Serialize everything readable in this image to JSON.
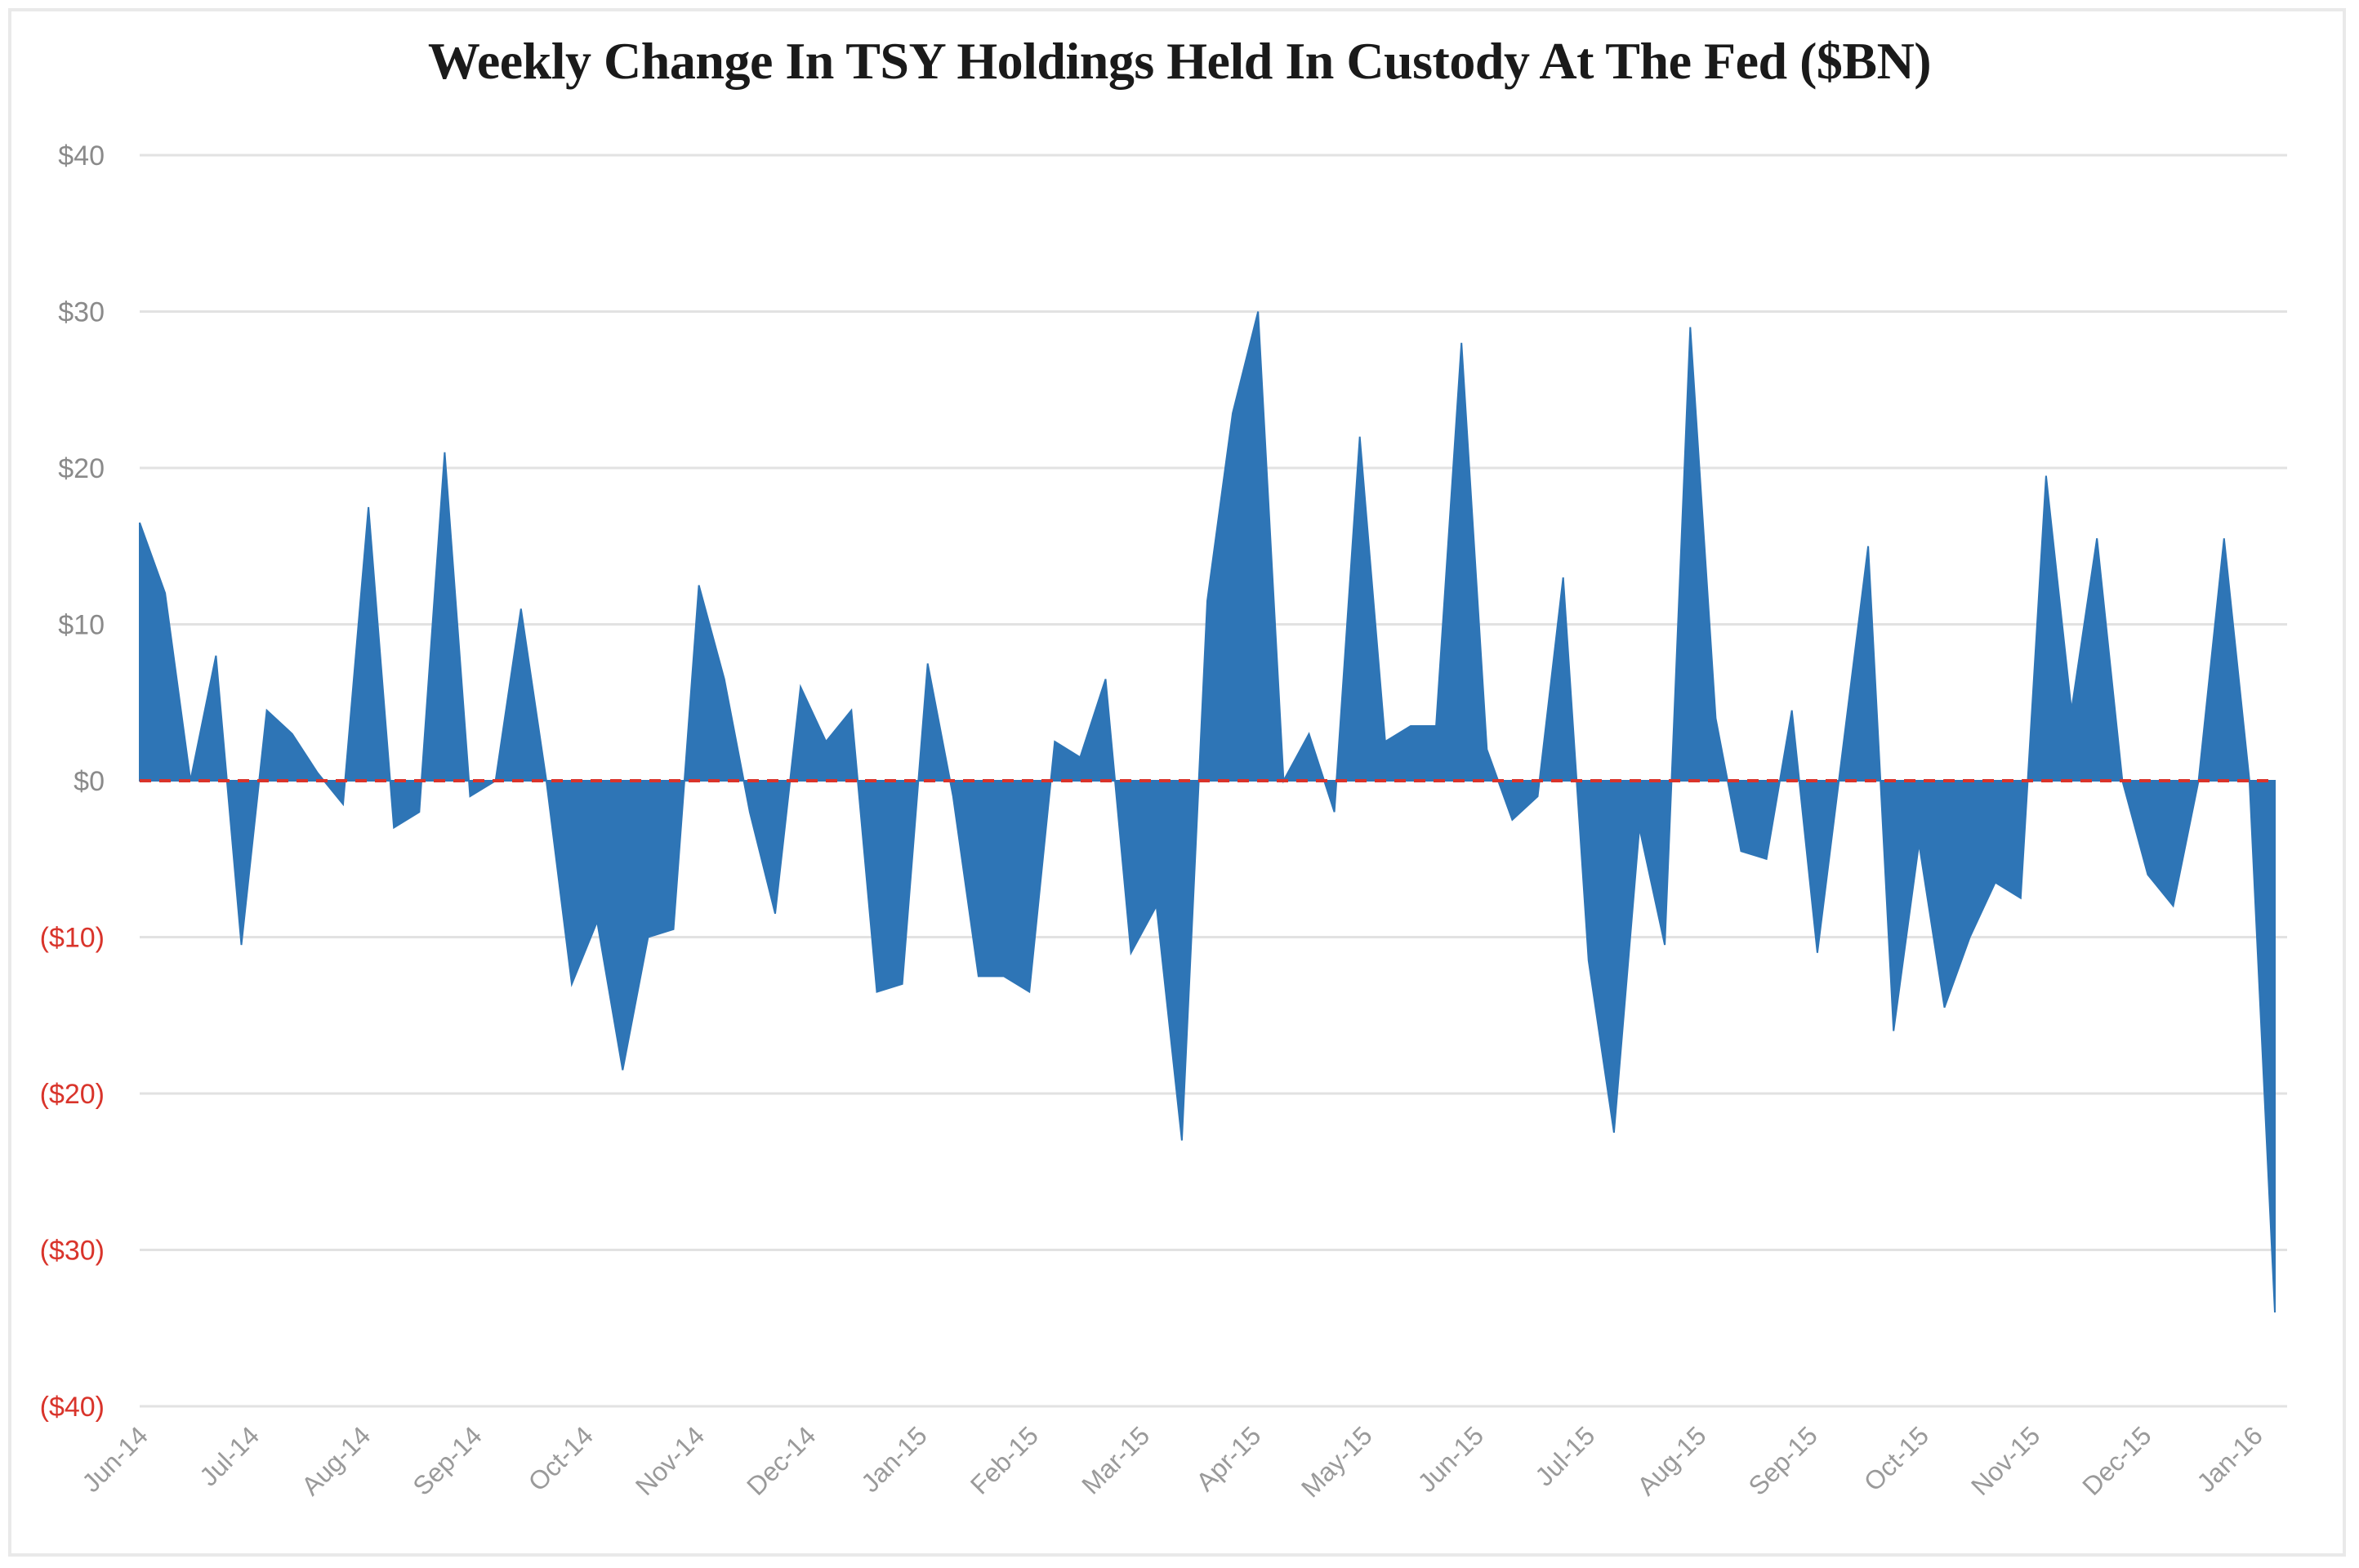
{
  "chart_data": {
    "type": "area",
    "title": "Weekly Change In TSY Holdings Held In Custody At The Fed ($BN)",
    "xlabel": "",
    "ylabel": "",
    "ylim": [
      -40,
      40
    ],
    "yticks": [
      40,
      30,
      20,
      10,
      0,
      -10,
      -20,
      -30,
      -40
    ],
    "ytick_labels": [
      "$40",
      "$30",
      "$20",
      "$10",
      "$0",
      "($10)",
      "($20)",
      "($30)",
      "($40)"
    ],
    "xtick_labels": [
      "Jun-14",
      "Jul-14",
      "Aug-14",
      "Sep-14",
      "Oct-14",
      "Nov-14",
      "Dec-14",
      "Jan-15",
      "Feb-15",
      "Mar-15",
      "Apr-15",
      "May-15",
      "Jun-15",
      "Jul-15",
      "Aug-15",
      "Sep-15",
      "Oct-15",
      "Nov-15",
      "Dec-15",
      "Jan-16"
    ],
    "grid": true,
    "series": [
      {
        "name": "Weekly Change",
        "color": "#2e75b6",
        "values": [
          16.5,
          12,
          0,
          8,
          -10.5,
          4.5,
          3,
          0.5,
          -1.5,
          17.5,
          -3,
          -2,
          21,
          -1,
          0,
          11,
          0,
          -13,
          -9,
          -18.5,
          -10,
          -9.5,
          12.5,
          6.5,
          -2,
          -8.5,
          6,
          2.5,
          4.5,
          -13.5,
          -13,
          7.5,
          -1,
          -12.5,
          -12.5,
          -13.5,
          2.5,
          1.5,
          6.5,
          -11,
          -8,
          -23,
          11.5,
          23.5,
          30,
          0,
          3,
          -2,
          22,
          2.5,
          3.5,
          3.5,
          28,
          2,
          -2.5,
          -1,
          13,
          -11.5,
          -22.5,
          -3,
          -10.5,
          29,
          4,
          -4.5,
          -5,
          4.5,
          -11,
          2,
          15,
          -16,
          -4,
          -14.5,
          -10,
          -6.5,
          -7.5,
          19.5,
          4.5,
          15.5,
          0,
          -6,
          -8,
          0,
          15.5,
          0,
          -34
        ]
      }
    ],
    "zero_line_color": "#d9342b",
    "positive_label_color": "#8a8a8a",
    "negative_label_color": "#d9342b",
    "grid_color": "#e2e2e2"
  }
}
